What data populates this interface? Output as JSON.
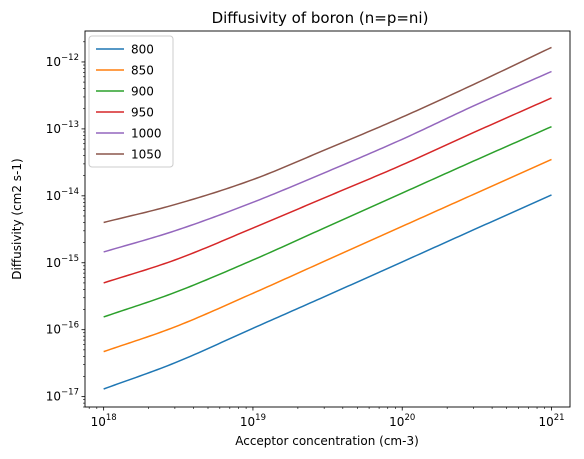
{
  "chart_data": {
    "type": "line",
    "title": "Diffusivity of boron (n=p=ni)",
    "xlabel": "Acceptor concentration (cm-3)",
    "ylabel": "Diffusivity (cm2 s-1)",
    "x_scale": "log",
    "y_scale": "log",
    "x_range": [
      7.5e+17,
      1.33e+21
    ],
    "y_range": [
      7e-18,
      2.9e-12
    ],
    "x_ticks": [
      {
        "value": 1e+18,
        "base": "10",
        "exp": "18"
      },
      {
        "value": 1e+19,
        "base": "10",
        "exp": "19"
      },
      {
        "value": 1e+20,
        "base": "10",
        "exp": "20"
      },
      {
        "value": 1e+21,
        "base": "10",
        "exp": "21"
      }
    ],
    "y_ticks": [
      {
        "value": 1e-17,
        "base": "10",
        "exp": "−17"
      },
      {
        "value": 1e-16,
        "base": "10",
        "exp": "−16"
      },
      {
        "value": 1e-15,
        "base": "10",
        "exp": "−15"
      },
      {
        "value": 1e-14,
        "base": "10",
        "exp": "−14"
      },
      {
        "value": 1e-13,
        "base": "10",
        "exp": "−13"
      },
      {
        "value": 1e-12,
        "base": "10",
        "exp": "−12"
      }
    ],
    "grid": false,
    "legend_position": "top-left",
    "x": [
      1e+18,
      3e+18,
      1e+19,
      3e+19,
      1e+20,
      3e+20,
      1e+21
    ],
    "series": [
      {
        "name": "800",
        "color": "#1f77b4",
        "values": [
          1.3e-17,
          3.2e-17,
          1.05e-16,
          3.1e-16,
          1.03e-15,
          3.1e-15,
          1.03e-14
        ]
      },
      {
        "name": "850",
        "color": "#ff7f0e",
        "values": [
          4.7e-17,
          1.1e-16,
          3.5e-16,
          1.05e-15,
          3.5e-15,
          1.05e-14,
          3.5e-14
        ]
      },
      {
        "name": "900",
        "color": "#2ca02c",
        "values": [
          1.55e-16,
          3.6e-16,
          1.1e-15,
          3.3e-15,
          1.1e-14,
          3.3e-14,
          1.08e-13
        ]
      },
      {
        "name": "950",
        "color": "#d62728",
        "values": [
          5e-16,
          1.1e-15,
          3.3e-15,
          9.3e-15,
          2.9e-14,
          8.8e-14,
          2.9e-13
        ]
      },
      {
        "name": "1000",
        "color": "#9467bd",
        "values": [
          1.45e-15,
          3e-15,
          8e-15,
          2.2e-14,
          7e-14,
          2.2e-13,
          7.2e-13
        ]
      },
      {
        "name": "1050",
        "color": "#8c564b",
        "values": [
          4e-15,
          7.4e-15,
          1.75e-14,
          4.8e-14,
          1.5e-13,
          4.6e-13,
          1.65e-12
        ]
      }
    ]
  }
}
